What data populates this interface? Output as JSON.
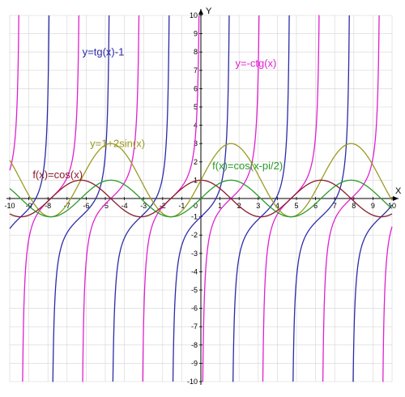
{
  "chart_data": {
    "type": "line",
    "xlim": [
      -10,
      10
    ],
    "ylim": [
      -10,
      10
    ],
    "grid": true,
    "xlabel": "X",
    "ylabel": "Y",
    "x_ticks": [
      -10,
      -9,
      -8,
      -7,
      -6,
      -5,
      -4,
      -3,
      -2,
      -1,
      1,
      2,
      3,
      4,
      5,
      6,
      7,
      8,
      9,
      10
    ],
    "y_ticks": [
      -10,
      -9,
      -8,
      -7,
      -6,
      -5,
      -4,
      -3,
      -2,
      -1,
      1,
      2,
      3,
      4,
      5,
      6,
      7,
      8,
      9,
      10
    ],
    "origin_label": "0",
    "series": [
      {
        "name": "y=tg(x)-1",
        "expr": "tan(x)-1",
        "color": "#2b2ba8"
      },
      {
        "name": "y=-ctg(x)",
        "expr": "-cot(x)",
        "color": "#e020d0"
      },
      {
        "name": "y=1+2sin(x)",
        "expr": "1+2*sin(x)",
        "color": "#9a9a20"
      },
      {
        "name": "f(x)=cos(x)",
        "expr": "cos(x)",
        "color": "#8b1a2a"
      },
      {
        "name": "f(x)=cos(x-pi/2)",
        "expr": "cos(x-pi/2)",
        "color": "#2a9a2a"
      }
    ]
  }
}
